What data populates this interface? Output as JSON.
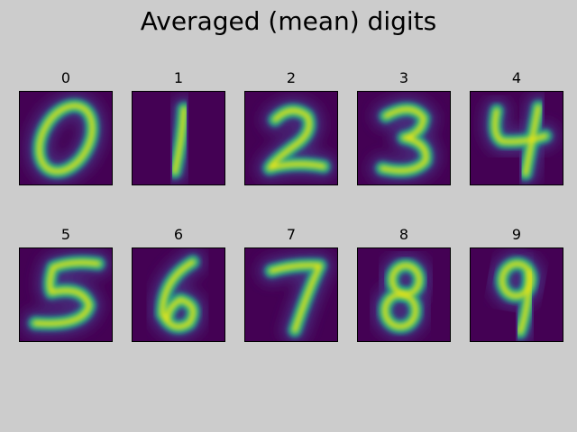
{
  "chart_data": {
    "type": "heatmap",
    "title": "Averaged (mean) digits",
    "colormap": "viridis",
    "background_color": "#cccccc",
    "frame_color": "#000000",
    "panels": [
      {
        "label": "0"
      },
      {
        "label": "1"
      },
      {
        "label": "2"
      },
      {
        "label": "3"
      },
      {
        "label": "4"
      },
      {
        "label": "5"
      },
      {
        "label": "6"
      },
      {
        "label": "7"
      },
      {
        "label": "8"
      },
      {
        "label": "9"
      }
    ]
  }
}
